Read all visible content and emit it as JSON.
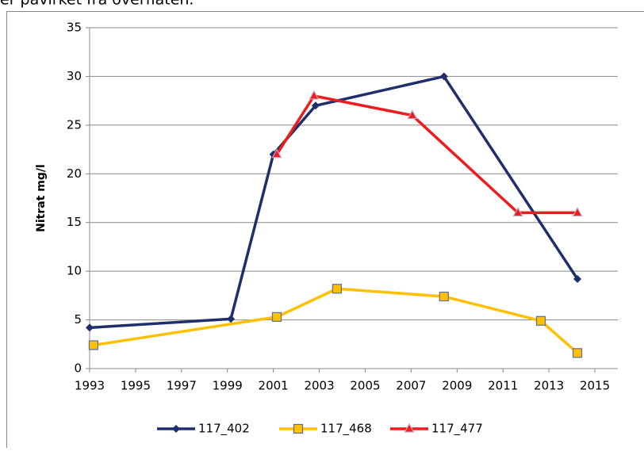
{
  "header_text": "er påvirket fra overflaten.",
  "chart_data": {
    "type": "line",
    "ylabel": "Nitrat mg/l",
    "xlim": [
      1993,
      2016
    ],
    "xticks": [
      1993,
      1995,
      1997,
      1999,
      2001,
      2003,
      2005,
      2007,
      2009,
      2011,
      2013,
      2015
    ],
    "ylim": [
      0,
      35
    ],
    "yticks": [
      0,
      5,
      10,
      15,
      20,
      25,
      30,
      35
    ],
    "grid": true,
    "legend": "bottom",
    "series": [
      {
        "name": "117_402",
        "color": "#1f2f6b",
        "marker": "diamond",
        "x": [
          1993,
          1999.15,
          2001,
          2002.84,
          2008.43,
          2014.24
        ],
        "values": [
          4.2,
          5.1,
          22,
          27,
          30,
          9.2
        ]
      },
      {
        "name": "117_468",
        "color": "#ffc000",
        "marker": "square",
        "x": [
          1993.17,
          2001.15,
          2003.77,
          2008.43,
          2012.65,
          2014.24
        ],
        "values": [
          2.4,
          5.3,
          8.2,
          7.4,
          4.9,
          1.6
        ]
      },
      {
        "name": "117_477",
        "color": "#ee1c1c",
        "marker": "triangle",
        "x": [
          2001.15,
          2002.77,
          2007.05,
          2011.65,
          2014.24
        ],
        "values": [
          22,
          28,
          26,
          16,
          16
        ]
      }
    ]
  }
}
